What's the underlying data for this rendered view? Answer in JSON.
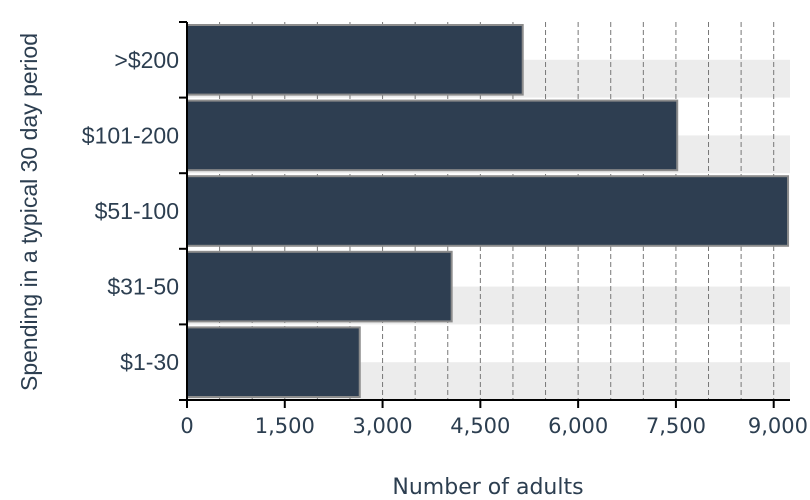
{
  "chart_data": {
    "type": "bar",
    "orientation": "horizontal",
    "categories": [
      ">$200",
      "$101-200",
      "$51-100",
      "$31-50",
      "$1-30"
    ],
    "values": [
      5150,
      7520,
      9220,
      4060,
      2650
    ],
    "xlabel": "Number of adults",
    "ylabel": "Spending in a typical 30 day period",
    "xlim": [
      0,
      9250
    ],
    "xticks": [
      0,
      1500,
      3000,
      4500,
      6000,
      7500,
      9000
    ],
    "xtick_labels": [
      "0",
      "1,500",
      "3,000",
      "4,500",
      "6,000",
      "7,500",
      "9,000"
    ],
    "grid": true,
    "legend": "none",
    "colors": {
      "bar": "#2e3e51",
      "bar_stroke": "#8c8c8c",
      "band": "#ececec",
      "grid": "#777777",
      "text": "#2c3e50"
    }
  }
}
